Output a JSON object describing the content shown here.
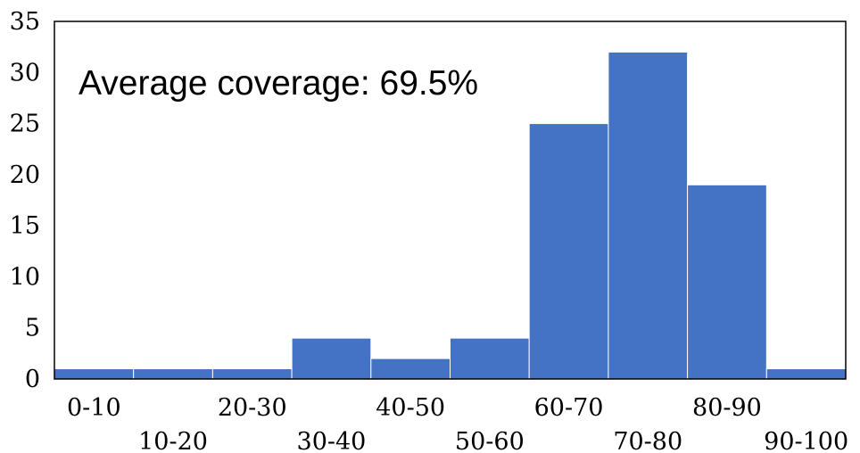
{
  "chart_data": {
    "type": "bar",
    "title": "",
    "xlabel": "",
    "ylabel": "",
    "categories": [
      "0-10",
      "10-20",
      "20-30",
      "30-40",
      "40-50",
      "50-60",
      "60-70",
      "70-80",
      "80-90",
      "90-100"
    ],
    "values": [
      1,
      1,
      1,
      4,
      2,
      4,
      25,
      32,
      19,
      1
    ],
    "ylim": [
      0,
      35
    ],
    "yticks": [
      "0",
      "5",
      "10",
      "15",
      "20",
      "25",
      "30",
      "35"
    ],
    "annotation": "Average coverage: 69.5%",
    "bar_color": "#4472C4",
    "grid": false,
    "legend": "none"
  }
}
